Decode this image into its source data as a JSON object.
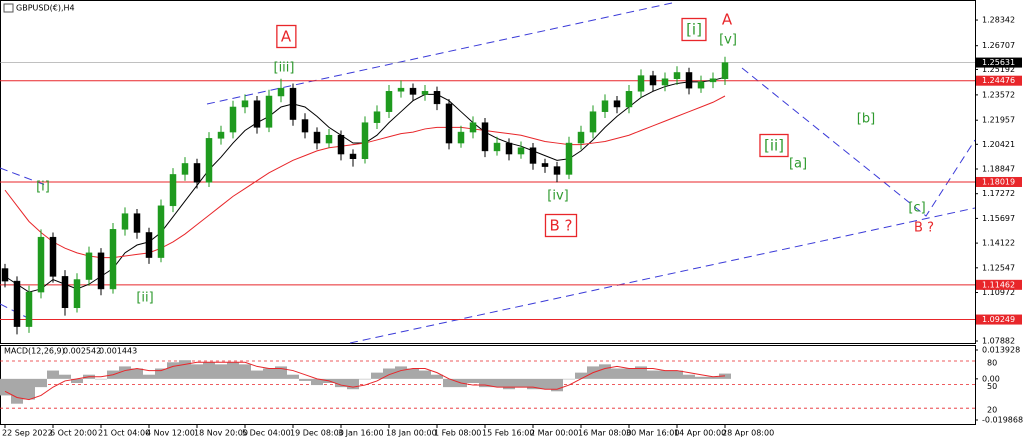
{
  "chart_data": {
    "type": "candlestick",
    "title": "GBPUSD(€),H4",
    "ylim": [
      1.0769,
      1.2962
    ],
    "yticks": [
      1.28342,
      1.26707,
      1.25192,
      1.23572,
      1.21957,
      1.20421,
      1.18847,
      1.17272,
      1.15697,
      1.14122,
      1.12547,
      1.10972,
      1.07882
    ],
    "bull_color": "#1f9a1f",
    "bear_color": "#000000",
    "categories": [
      "22 Sep 2022",
      null,
      null,
      null,
      "6 Oct 20:00",
      null,
      null,
      null,
      "21 Oct 04:00",
      null,
      null,
      null,
      "4 Nov 12:00",
      null,
      null,
      null,
      "18 Nov 20:00",
      null,
      null,
      null,
      "5 Dec 04:00",
      null,
      null,
      null,
      "19 Dec 08:00",
      null,
      null,
      null,
      "3 Jan 16:00",
      null,
      null,
      null,
      "18 Jan 00:00",
      null,
      null,
      null,
      "1 Feb 08:00",
      null,
      null,
      null,
      "15 Feb 16:00",
      null,
      null,
      null,
      "2 Mar 00:00",
      null,
      null,
      null,
      "16 Mar 08:00",
      null,
      null,
      null,
      "30 Mar 16:00",
      null,
      null,
      null,
      "14 Apr 00:00",
      null,
      null,
      null,
      "28 Apr 08:00"
    ],
    "candles": [
      [
        1.125,
        1.128,
        1.113,
        1.117
      ],
      [
        1.117,
        1.12,
        1.083,
        1.088
      ],
      [
        1.088,
        1.114,
        1.084,
        1.11
      ],
      [
        1.11,
        1.15,
        1.106,
        1.145
      ],
      [
        1.145,
        1.148,
        1.116,
        1.12
      ],
      [
        1.12,
        1.124,
        1.095,
        1.1
      ],
      [
        1.1,
        1.122,
        1.097,
        1.118
      ],
      [
        1.118,
        1.139,
        1.114,
        1.135
      ],
      [
        1.135,
        1.138,
        1.108,
        1.112
      ],
      [
        1.112,
        1.154,
        1.109,
        1.15
      ],
      [
        1.15,
        1.164,
        1.146,
        1.16
      ],
      [
        1.16,
        1.163,
        1.144,
        1.148
      ],
      [
        1.148,
        1.151,
        1.128,
        1.132
      ],
      [
        1.132,
        1.169,
        1.129,
        1.165
      ],
      [
        1.165,
        1.189,
        1.161,
        1.185
      ],
      [
        1.185,
        1.196,
        1.181,
        1.192
      ],
      [
        1.192,
        1.195,
        1.176,
        1.18
      ],
      [
        1.18,
        1.212,
        1.177,
        1.208
      ],
      [
        1.208,
        1.216,
        1.204,
        1.212
      ],
      [
        1.212,
        1.232,
        1.208,
        1.228
      ],
      [
        1.228,
        1.236,
        1.224,
        1.232
      ],
      [
        1.232,
        1.235,
        1.211,
        1.215
      ],
      [
        1.215,
        1.239,
        1.212,
        1.235
      ],
      [
        1.235,
        1.246,
        1.231,
        1.24
      ],
      [
        1.24,
        1.243,
        1.216,
        1.22
      ],
      [
        1.22,
        1.224,
        1.208,
        1.212
      ],
      [
        1.212,
        1.215,
        1.201,
        1.205
      ],
      [
        1.205,
        1.214,
        1.202,
        1.21
      ],
      [
        1.21,
        1.213,
        1.194,
        1.198
      ],
      [
        1.198,
        1.201,
        1.19,
        1.195
      ],
      [
        1.195,
        1.222,
        1.192,
        1.218
      ],
      [
        1.218,
        1.229,
        1.214,
        1.225
      ],
      [
        1.225,
        1.242,
        1.221,
        1.238
      ],
      [
        1.238,
        1.245,
        1.234,
        1.24
      ],
      [
        1.24,
        1.243,
        1.232,
        1.236
      ],
      [
        1.236,
        1.242,
        1.232,
        1.238
      ],
      [
        1.238,
        1.241,
        1.226,
        1.23
      ],
      [
        1.23,
        1.233,
        1.201,
        1.205
      ],
      [
        1.205,
        1.216,
        1.202,
        1.212
      ],
      [
        1.212,
        1.222,
        1.208,
        1.218
      ],
      [
        1.218,
        1.221,
        1.196,
        1.2
      ],
      [
        1.2,
        1.209,
        1.197,
        1.205
      ],
      [
        1.205,
        1.208,
        1.194,
        1.198
      ],
      [
        1.198,
        1.206,
        1.195,
        1.202
      ],
      [
        1.202,
        1.205,
        1.188,
        1.192
      ],
      [
        1.192,
        1.195,
        1.186,
        1.19
      ],
      [
        1.19,
        1.193,
        1.18,
        1.185
      ],
      [
        1.185,
        1.209,
        1.182,
        1.205
      ],
      [
        1.205,
        1.216,
        1.201,
        1.212
      ],
      [
        1.212,
        1.229,
        1.208,
        1.225
      ],
      [
        1.225,
        1.236,
        1.221,
        1.232
      ],
      [
        1.232,
        1.235,
        1.224,
        1.228
      ],
      [
        1.228,
        1.242,
        1.224,
        1.238
      ],
      [
        1.238,
        1.252,
        1.234,
        1.248
      ],
      [
        1.248,
        1.251,
        1.238,
        1.242
      ],
      [
        1.242,
        1.25,
        1.238,
        1.246
      ],
      [
        1.246,
        1.254,
        1.242,
        1.25
      ],
      [
        1.25,
        1.253,
        1.236,
        1.24
      ],
      [
        1.24,
        1.248,
        1.237,
        1.244
      ],
      [
        1.244,
        1.25,
        1.24,
        1.246
      ],
      [
        1.246,
        1.26,
        1.242,
        1.2563
      ]
    ],
    "moving_averages": [
      {
        "color": "#000000",
        "values": [
          1.12,
          1.115,
          1.11,
          1.112,
          1.118,
          1.115,
          1.112,
          1.115,
          1.12,
          1.125,
          1.135,
          1.14,
          1.142,
          1.148,
          1.158,
          1.168,
          1.178,
          1.188,
          1.196,
          1.205,
          1.213,
          1.218,
          1.222,
          1.228,
          1.23,
          1.228,
          1.222,
          1.215,
          1.21,
          1.205,
          1.205,
          1.21,
          1.218,
          1.225,
          1.232,
          1.236,
          1.236,
          1.232,
          1.225,
          1.218,
          1.212,
          1.208,
          1.205,
          1.203,
          1.2,
          1.197,
          1.194,
          1.195,
          1.2,
          1.207,
          1.215,
          1.222,
          1.228,
          1.234,
          1.238,
          1.241,
          1.243,
          1.244,
          1.244,
          1.245,
          1.247
        ]
      },
      {
        "color": "#e8262a",
        "values": [
          1.175,
          1.165,
          1.155,
          1.148,
          1.142,
          1.138,
          1.135,
          1.133,
          1.132,
          1.132,
          1.133,
          1.134,
          1.135,
          1.138,
          1.142,
          1.147,
          1.153,
          1.159,
          1.165,
          1.171,
          1.176,
          1.181,
          1.186,
          1.19,
          1.194,
          1.197,
          1.2,
          1.202,
          1.203,
          1.204,
          1.205,
          1.207,
          1.209,
          1.211,
          1.212,
          1.214,
          1.215,
          1.215,
          1.215,
          1.214,
          1.213,
          1.212,
          1.211,
          1.21,
          1.208,
          1.206,
          1.205,
          1.204,
          1.204,
          1.205,
          1.206,
          1.208,
          1.21,
          1.213,
          1.216,
          1.219,
          1.222,
          1.225,
          1.228,
          1.231,
          1.235
        ]
      }
    ],
    "current_price": 1.25631,
    "levels": [
      {
        "value": 1.24476,
        "color": "#e8262a"
      },
      {
        "value": 1.18019,
        "color": "#e8262a"
      },
      {
        "value": 1.11462,
        "color": "#e8262a"
      },
      {
        "value": 1.09249,
        "color": "#e8262a"
      }
    ],
    "annotations": [
      {
        "text": "A",
        "color": "#e8262a",
        "box": "#e8262a"
      },
      {
        "text": "[iii]",
        "color": "#2e9a2e"
      },
      {
        "text": "[i]",
        "color": "#2e9a2e"
      },
      {
        "text": "[ii]",
        "color": "#2e9a2e"
      },
      {
        "text": "[iv]",
        "color": "#2e9a2e"
      },
      {
        "text": "B ?",
        "color": "#e8262a",
        "box": "#e8262a"
      },
      {
        "text": "[i]",
        "color": "#2e9a2e",
        "box": "#e8262a"
      },
      {
        "text": "A",
        "color": "#e8262a"
      },
      {
        "text": "[v]",
        "color": "#2e9a2e"
      },
      {
        "text": "[ii]",
        "color": "#2e9a2e",
        "box": "#e8262a"
      },
      {
        "text": "[a]",
        "color": "#2e9a2e"
      },
      {
        "text": "[b]",
        "color": "#2e9a2e"
      },
      {
        "text": "[c]",
        "color": "#2e9a2e"
      },
      {
        "text": "B ?",
        "color": "#e8262a"
      }
    ],
    "macd": {
      "title": "MACD(12,26,9)",
      "hist_color": "#a8a8a8",
      "signal_color": "#e8262a",
      "level_color": "#e8262a",
      "ylim": [
        -0.019868,
        0.013928
      ],
      "yticks": [
        0.013928,
        {
          "value": 0,
          "label": "0.00"
        },
        -0.019868
      ],
      "y2lim": [
        5,
        94
      ],
      "y2ticks": [
        80,
        50,
        20
      ],
      "values": [
        -0.008,
        -0.012,
        -0.01,
        -0.004,
        0.004,
        0.002,
        -0.002,
        0.002,
        0.0,
        0.004,
        0.006,
        0.005,
        0.002,
        0.005,
        0.008,
        0.009,
        0.007,
        0.008,
        0.007,
        0.008,
        0.007,
        0.004,
        0.005,
        0.006,
        0.002,
        -0.001,
        -0.003,
        -0.002,
        -0.004,
        -0.005,
        0.0,
        0.003,
        0.005,
        0.006,
        0.005,
        0.004,
        0.002,
        -0.004,
        -0.004,
        -0.002,
        -0.004,
        -0.004,
        -0.005,
        -0.004,
        -0.005,
        -0.005,
        -0.006,
        0.0,
        0.003,
        0.006,
        0.007,
        0.005,
        0.005,
        0.006,
        0.004,
        0.004,
        0.004,
        0.002,
        0.001,
        0.001,
        0.002542
      ],
      "signal": [
        -0.006,
        -0.009,
        -0.01,
        -0.008,
        -0.004,
        -0.001,
        0.0,
        0.001,
        0.001,
        0.002,
        0.004,
        0.005,
        0.004,
        0.004,
        0.006,
        0.007,
        0.008,
        0.008,
        0.008,
        0.008,
        0.008,
        0.006,
        0.005,
        0.005,
        0.004,
        0.002,
        0.0,
        -0.001,
        -0.003,
        -0.004,
        -0.003,
        -0.001,
        0.002,
        0.004,
        0.005,
        0.005,
        0.003,
        0.0,
        -0.002,
        -0.003,
        -0.003,
        -0.004,
        -0.004,
        -0.004,
        -0.004,
        -0.005,
        -0.005,
        -0.003,
        0.0,
        0.003,
        0.005,
        0.006,
        0.005,
        0.005,
        0.005,
        0.004,
        0.004,
        0.003,
        0.002,
        0.001,
        0.001443
      ]
    }
  }
}
